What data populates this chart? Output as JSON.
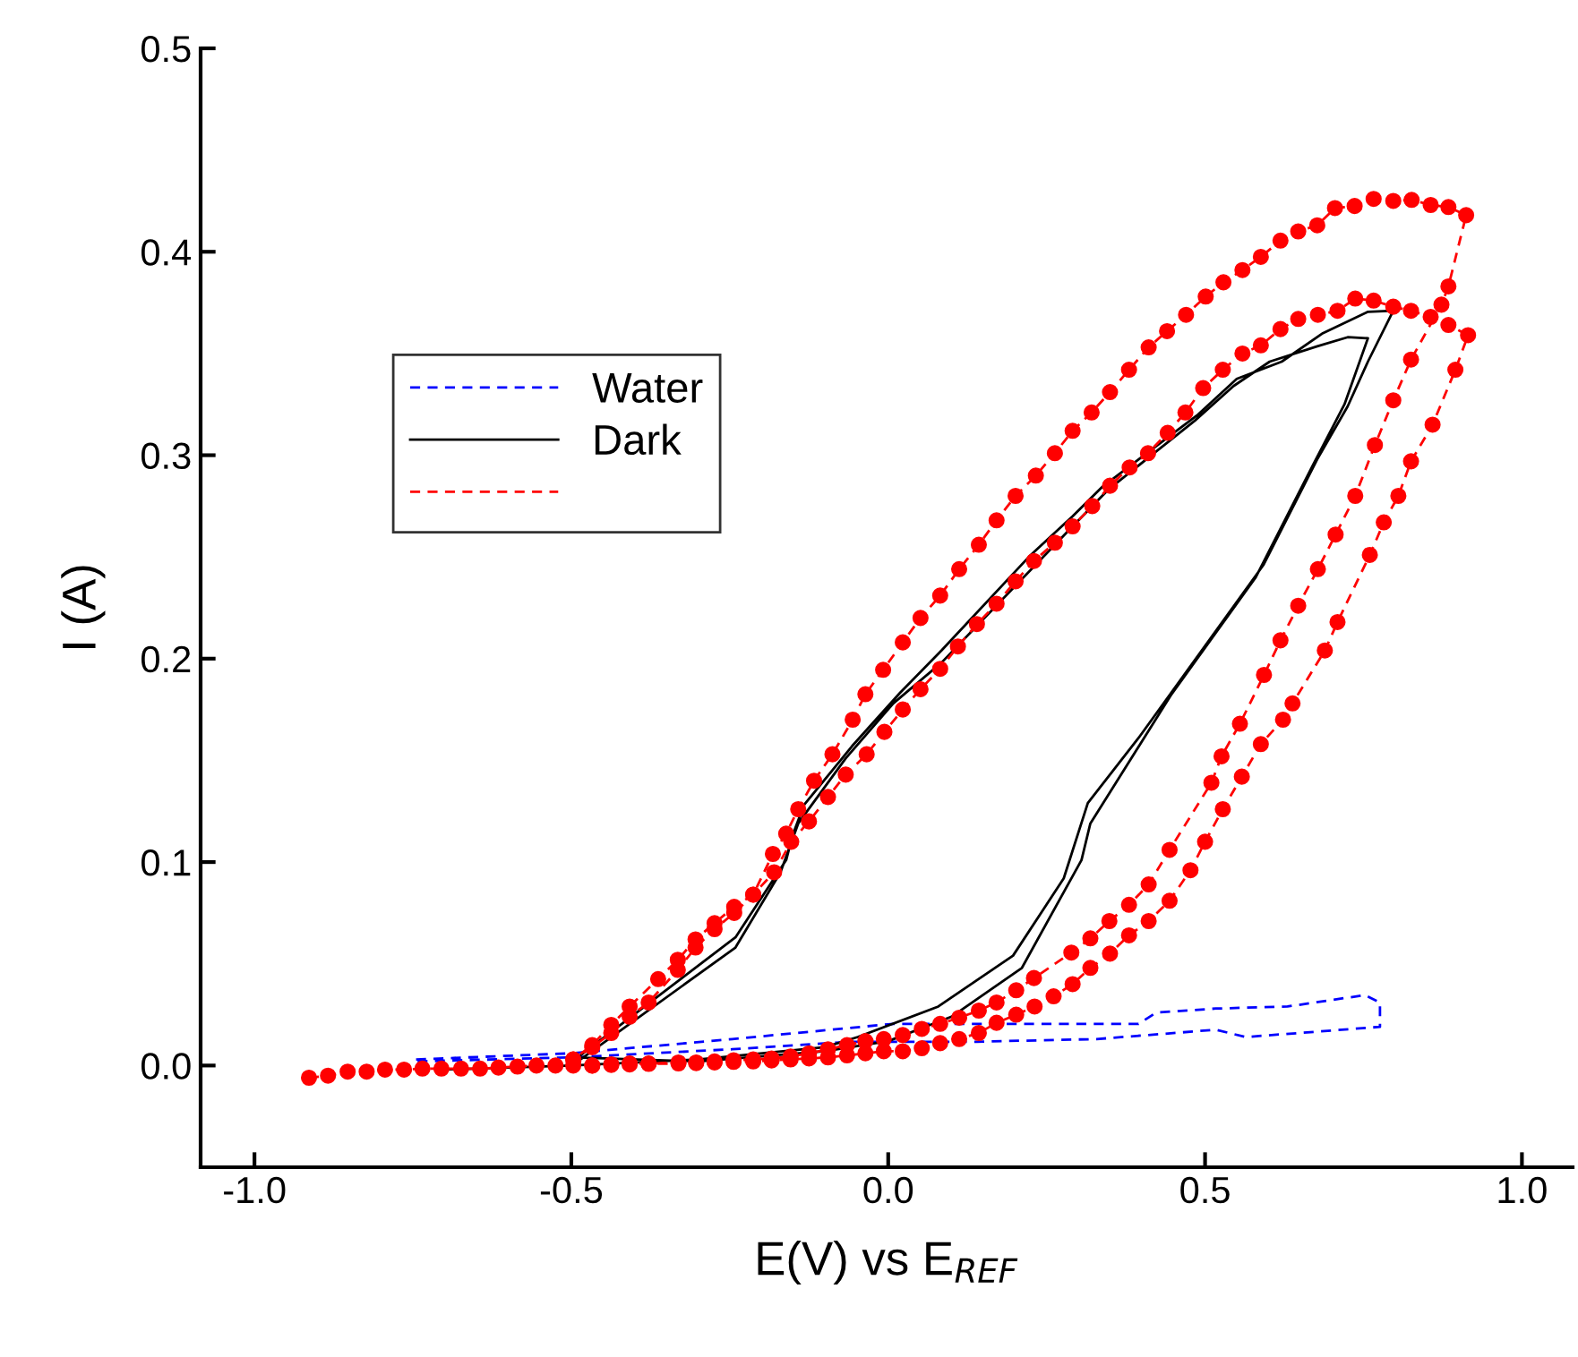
{
  "chart_data": {
    "type": "line",
    "xlabel": "E(V) vs E$_{REF}$",
    "ylabel": "I (A)",
    "xlim": [
      -1.085,
      1.08
    ],
    "ylim": [
      -0.05,
      0.5
    ],
    "xticks": [
      {
        "value": -1.0,
        "label": "-1.0"
      },
      {
        "value": -0.5,
        "label": "-0.5"
      },
      {
        "value": 0.0,
        "label": "0.0"
      },
      {
        "value": 0.5,
        "label": "0.5"
      },
      {
        "value": 1.0,
        "label": "1.0"
      }
    ],
    "yticks": [
      {
        "value": 0.0,
        "label": "0.0"
      },
      {
        "value": 0.1,
        "label": "0.1"
      },
      {
        "value": 0.2,
        "label": "0.2"
      },
      {
        "value": 0.3,
        "label": "0.3"
      },
      {
        "value": 0.4,
        "label": "0.4"
      },
      {
        "value": 0.5,
        "label": "0.5"
      }
    ],
    "grid": false,
    "legend": "left",
    "series": [
      {
        "name": "Water",
        "color": "#0000ff",
        "line_style": "dashed",
        "marker": "none",
        "x": [
          -0.745,
          -0.5,
          -0.246,
          0.008,
          0.234,
          0.395,
          0.423,
          0.517,
          0.63,
          0.752,
          0.776,
          0.776,
          0.564,
          0.517,
          0.329,
          0.14,
          -0.057,
          -0.246,
          -0.5,
          -0.745
        ],
        "values": [
          0.003,
          0.006,
          0.013,
          0.0205,
          0.0205,
          0.0205,
          0.026,
          0.028,
          0.029,
          0.0346,
          0.031,
          0.019,
          0.014,
          0.0176,
          0.013,
          0.0117,
          0.0117,
          0.008,
          0.004,
          0.002
        ]
      },
      {
        "name": "Dark",
        "color": "#000000",
        "line_style": "solid",
        "marker": "none",
        "x": [
          -0.7,
          -0.5,
          -0.3,
          -0.1,
          -0.048,
          0.079,
          0.197,
          0.277,
          0.315,
          0.395,
          0.46,
          0.592,
          0.677,
          0.725,
          0.757,
          0.797,
          0.757,
          0.686,
          0.621,
          0.55,
          0.489,
          0.338,
          0.291,
          0.225,
          0.084,
          0.018,
          -0.057,
          -0.133,
          -0.151,
          -0.161,
          -0.241,
          -0.49,
          -0.3,
          -0.1,
          0.0,
          0.1,
          0.211,
          0.305,
          0.319,
          0.446,
          0.58,
          0.67,
          0.72,
          0.757,
          0.725,
          0.677,
          0.602,
          0.545,
          0.484,
          0.347,
          0.291,
          0.084,
          0.008,
          -0.067,
          -0.142,
          -0.17,
          -0.241,
          -0.49
        ],
        "values": [
          -0.002,
          0.0,
          0.003,
          0.009,
          0.014,
          0.029,
          0.054,
          0.092,
          0.129,
          0.161,
          0.189,
          0.246,
          0.298,
          0.324,
          0.346,
          0.371,
          0.3705,
          0.36,
          0.346,
          0.3375,
          0.32,
          0.2845,
          0.27,
          0.251,
          0.204,
          0.183,
          0.157,
          0.128,
          0.113,
          0.101,
          0.063,
          0.004,
          0.002,
          0.007,
          0.012,
          0.024,
          0.048,
          0.101,
          0.119,
          0.182,
          0.24,
          0.295,
          0.325,
          0.3575,
          0.358,
          0.3535,
          0.346,
          0.334,
          0.317,
          0.283,
          0.265,
          0.198,
          0.178,
          0.151,
          0.119,
          0.095,
          0.058,
          0.002
        ]
      },
      {
        "color": "#ff0000",
        "line_style": "dashed",
        "marker": "circle",
        "x": [
          -0.914,
          -0.884,
          -0.853,
          -0.823,
          -0.794,
          -0.764,
          -0.735,
          -0.705,
          -0.674,
          -0.644,
          -0.615,
          -0.585,
          -0.555,
          -0.525,
          -0.497,
          -0.467,
          -0.437,
          -0.408,
          -0.378,
          -0.331,
          -0.303,
          -0.274,
          -0.244,
          -0.213,
          -0.184,
          -0.154,
          -0.125,
          -0.095,
          -0.065,
          -0.036,
          -0.007,
          0.023,
          0.053,
          0.082,
          0.112,
          0.143,
          0.171,
          0.202,
          0.23,
          0.289,
          0.319,
          0.349,
          0.38,
          0.411,
          0.444,
          0.51,
          0.526,
          0.555,
          0.593,
          0.619,
          0.647,
          0.678,
          0.706,
          0.737,
          0.768,
          0.797,
          0.825,
          0.873,
          0.884,
          0.912,
          0.884,
          0.856,
          0.826,
          0.797,
          0.766,
          0.736,
          0.705,
          0.677,
          0.647,
          0.619,
          0.588,
          0.559,
          0.529,
          0.501,
          0.47,
          0.44,
          0.411,
          0.38,
          0.35,
          0.321,
          0.291,
          0.263,
          0.233,
          0.201,
          0.171,
          0.143,
          0.112,
          0.082,
          0.051,
          0.023,
          -0.008,
          -0.036,
          -0.056,
          -0.088,
          -0.117,
          -0.142,
          -0.161,
          -0.182,
          -0.213,
          -0.243,
          -0.274,
          -0.304,
          -0.332,
          -0.363,
          -0.408,
          -0.437,
          -0.467,
          -0.497,
          -0.467,
          -0.437,
          -0.408,
          -0.378,
          -0.331,
          -0.303,
          -0.274,
          -0.244,
          -0.213,
          -0.184,
          -0.154,
          -0.125,
          -0.095,
          -0.065,
          -0.036,
          -0.007,
          0.023,
          0.053,
          0.082,
          0.112,
          0.143,
          0.171,
          0.202,
          0.231,
          0.261,
          0.291,
          0.319,
          0.35,
          0.38,
          0.411,
          0.444,
          0.477,
          0.5,
          0.528,
          0.558,
          0.588,
          0.623,
          0.638,
          0.689,
          0.709,
          0.76,
          0.782,
          0.805,
          0.825,
          0.859,
          0.895,
          0.915,
          0.884,
          0.856,
          0.825,
          0.797,
          0.766,
          0.737,
          0.709,
          0.678,
          0.647,
          0.619,
          0.588,
          0.559,
          0.528,
          0.497,
          0.469,
          0.441,
          0.41,
          0.381,
          0.35,
          0.322,
          0.291,
          0.263,
          0.23,
          0.201,
          0.171,
          0.14,
          0.11,
          0.082,
          0.051,
          0.023,
          -0.006,
          -0.034,
          -0.067,
          -0.095,
          -0.125,
          -0.153,
          -0.18,
          -0.213,
          -0.243,
          -0.274,
          -0.304,
          -0.332,
          -0.378,
          -0.408,
          -0.437,
          -0.467,
          -0.497
        ],
        "values": [
          -0.006,
          -0.005,
          -0.003,
          -0.003,
          -0.002,
          -0.002,
          -0.0015,
          -0.0015,
          -0.0015,
          -0.0015,
          -0.001,
          -0.0005,
          0.0,
          0.0,
          0.0,
          0.0,
          0.0006,
          0.001,
          0.001,
          0.0015,
          0.0015,
          0.002,
          0.0026,
          0.003,
          0.0035,
          0.0044,
          0.006,
          0.008,
          0.01,
          0.012,
          0.013,
          0.015,
          0.018,
          0.0205,
          0.0235,
          0.027,
          0.031,
          0.037,
          0.043,
          0.0555,
          0.0625,
          0.071,
          0.079,
          0.089,
          0.106,
          0.139,
          0.152,
          0.168,
          0.192,
          0.209,
          0.226,
          0.244,
          0.261,
          0.28,
          0.305,
          0.327,
          0.347,
          0.374,
          0.383,
          0.418,
          0.422,
          0.423,
          0.4255,
          0.425,
          0.426,
          0.4225,
          0.4215,
          0.413,
          0.41,
          0.4055,
          0.3975,
          0.391,
          0.385,
          0.378,
          0.369,
          0.361,
          0.353,
          0.342,
          0.331,
          0.321,
          0.312,
          0.301,
          0.29,
          0.28,
          0.268,
          0.256,
          0.244,
          0.231,
          0.22,
          0.208,
          0.1945,
          0.1825,
          0.17,
          0.153,
          0.14,
          0.126,
          0.114,
          0.104,
          0.084,
          0.078,
          0.07,
          0.062,
          0.052,
          0.0425,
          0.029,
          0.02,
          0.01,
          0.003,
          0.0,
          0.0003,
          0.0005,
          0.0008,
          0.001,
          0.0012,
          0.0015,
          0.0018,
          0.002,
          0.0025,
          0.003,
          0.0035,
          0.004,
          0.005,
          0.006,
          0.007,
          0.007,
          0.0085,
          0.011,
          0.013,
          0.016,
          0.021,
          0.025,
          0.029,
          0.034,
          0.04,
          0.048,
          0.055,
          0.064,
          0.071,
          0.081,
          0.096,
          0.11,
          0.126,
          0.142,
          0.158,
          0.17,
          0.178,
          0.204,
          0.218,
          0.251,
          0.267,
          0.28,
          0.297,
          0.315,
          0.342,
          0.359,
          0.364,
          0.368,
          0.371,
          0.373,
          0.376,
          0.377,
          0.371,
          0.369,
          0.367,
          0.362,
          0.354,
          0.35,
          0.342,
          0.333,
          0.321,
          0.311,
          0.301,
          0.294,
          0.285,
          0.275,
          0.265,
          0.257,
          0.248,
          0.238,
          0.227,
          0.217,
          0.206,
          0.195,
          0.185,
          0.175,
          0.164,
          0.153,
          0.143,
          0.132,
          0.12,
          0.11,
          0.095,
          0.084,
          0.075,
          0.067,
          0.058,
          0.047,
          0.031,
          0.024,
          0.016,
          0.009,
          0.003
        ]
      }
    ]
  }
}
